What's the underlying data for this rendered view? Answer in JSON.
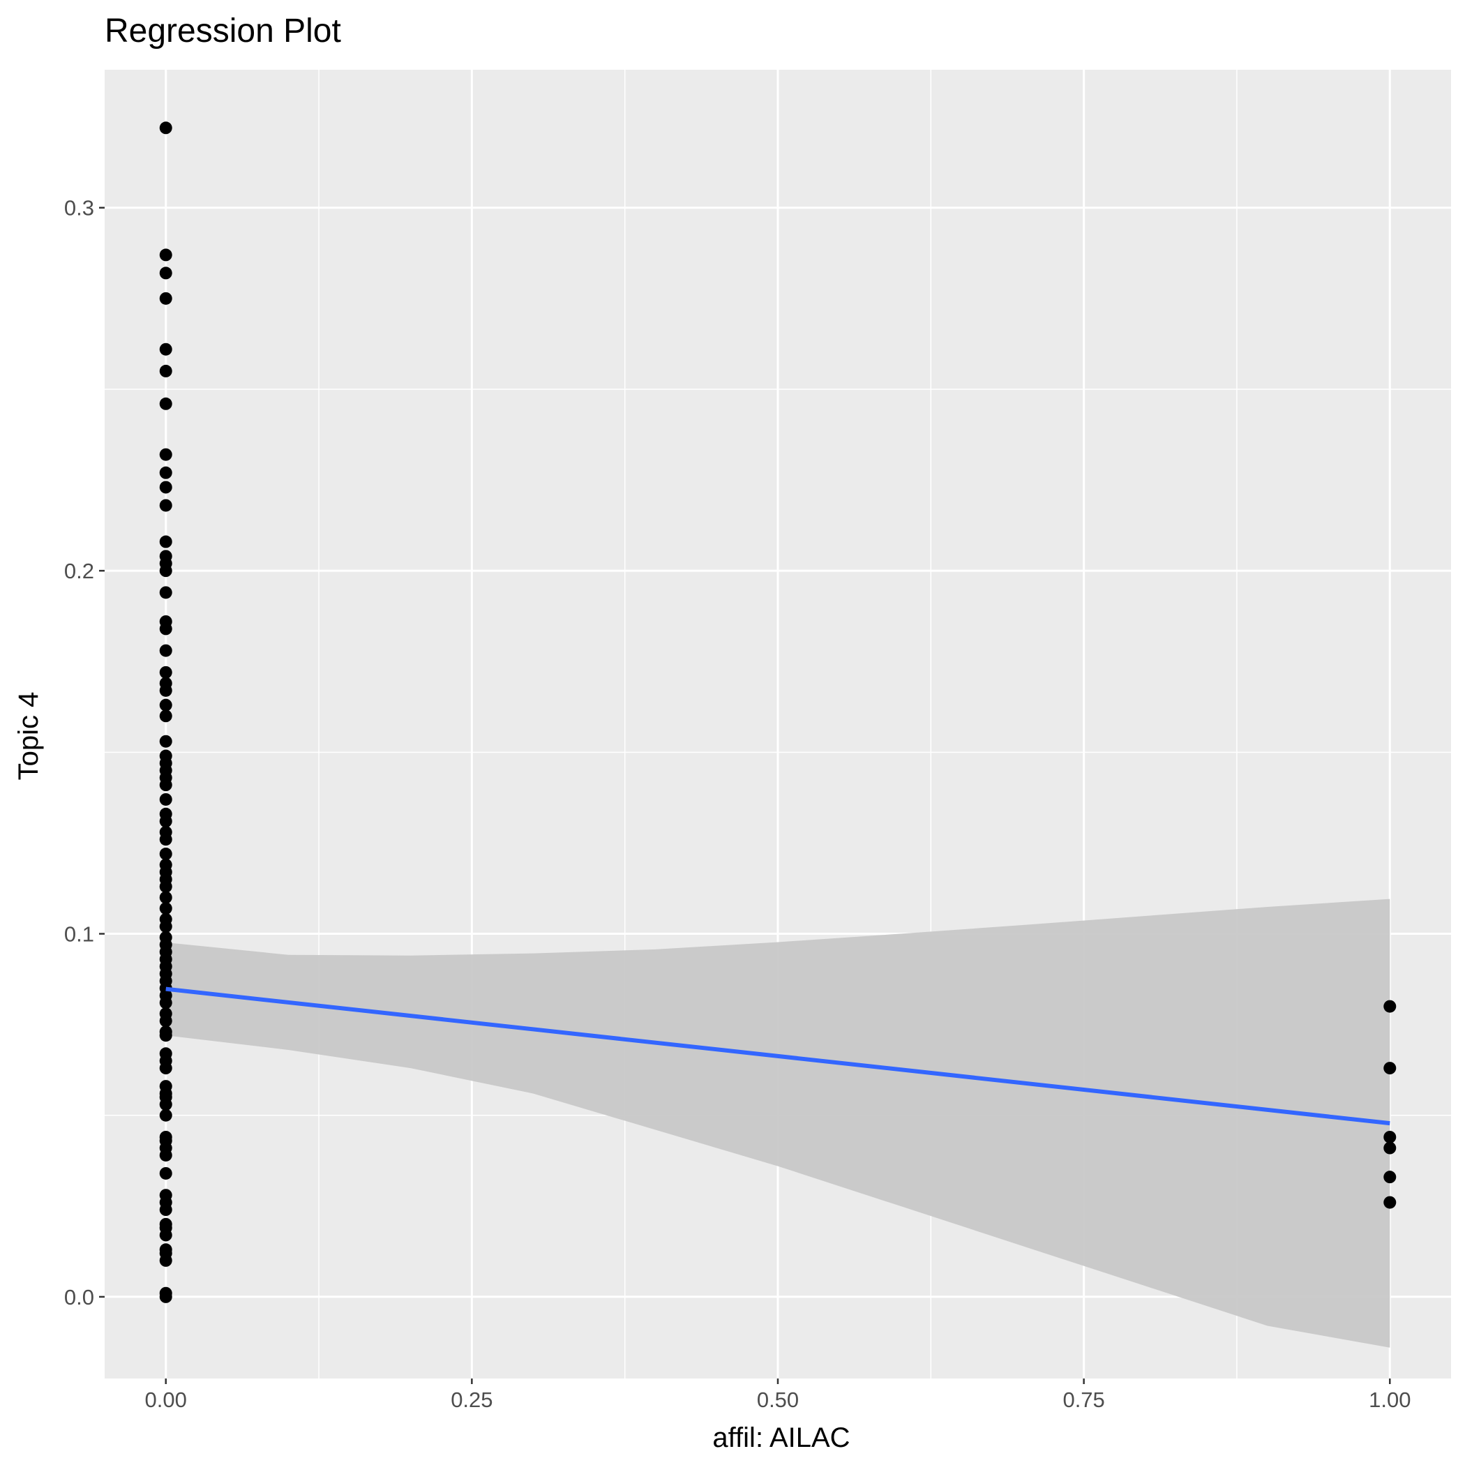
{
  "chart_data": {
    "type": "scatter",
    "title": "Regression Plot",
    "xlabel": "affil: AILAC",
    "ylabel": "Topic 4",
    "xlim": [
      -0.05,
      1.05
    ],
    "ylim": [
      -0.0225,
      0.338
    ],
    "x_ticks": [
      {
        "value": 0.0,
        "label": "0.00"
      },
      {
        "value": 0.25,
        "label": "0.25"
      },
      {
        "value": 0.5,
        "label": "0.50"
      },
      {
        "value": 0.75,
        "label": "0.75"
      },
      {
        "value": 1.0,
        "label": "1.00"
      }
    ],
    "y_ticks": [
      {
        "value": 0.0,
        "label": "0.0"
      },
      {
        "value": 0.1,
        "label": "0.1"
      },
      {
        "value": 0.2,
        "label": "0.2"
      },
      {
        "value": 0.3,
        "label": "0.3"
      }
    ],
    "grid": true,
    "points": {
      "x0_y": [
        0.322,
        0.287,
        0.282,
        0.275,
        0.261,
        0.255,
        0.246,
        0.232,
        0.227,
        0.223,
        0.218,
        0.208,
        0.204,
        0.202,
        0.2,
        0.194,
        0.186,
        0.184,
        0.178,
        0.172,
        0.169,
        0.167,
        0.163,
        0.16,
        0.153,
        0.149,
        0.147,
        0.145,
        0.143,
        0.141,
        0.137,
        0.133,
        0.131,
        0.128,
        0.126,
        0.122,
        0.119,
        0.117,
        0.115,
        0.113,
        0.11,
        0.107,
        0.104,
        0.102,
        0.099,
        0.097,
        0.095,
        0.093,
        0.091,
        0.089,
        0.087,
        0.085,
        0.083,
        0.081,
        0.078,
        0.076,
        0.073,
        0.072,
        0.067,
        0.065,
        0.063,
        0.058,
        0.056,
        0.055,
        0.053,
        0.05,
        0.044,
        0.043,
        0.041,
        0.039,
        0.034,
        0.028,
        0.026,
        0.024,
        0.02,
        0.019,
        0.017,
        0.013,
        0.012,
        0.01,
        0.001,
        0.0
      ],
      "x1_y": [
        0.08,
        0.063,
        0.044,
        0.041,
        0.033,
        0.026
      ]
    },
    "regression_line": {
      "x": [
        0.0,
        1.0
      ],
      "y": [
        0.0848,
        0.0478
      ]
    },
    "confidence_band": {
      "x": [
        0.0,
        0.1,
        0.2,
        0.3,
        0.4,
        0.5,
        0.6,
        0.7,
        0.8,
        0.9,
        1.0
      ],
      "upper": [
        0.0976,
        0.0942,
        0.094,
        0.0946,
        0.0957,
        0.0977,
        0.1,
        0.1024,
        0.1049,
        0.1074,
        0.1096
      ],
      "lower": [
        0.072,
        0.068,
        0.063,
        0.056,
        0.046,
        0.036,
        0.025,
        0.014,
        0.003,
        -0.008,
        -0.014
      ]
    },
    "colors": {
      "panel": "#ebebeb",
      "grid": "#ffffff",
      "points": "#000000",
      "line": "#3366ff",
      "band": "#c8c8c8"
    }
  }
}
